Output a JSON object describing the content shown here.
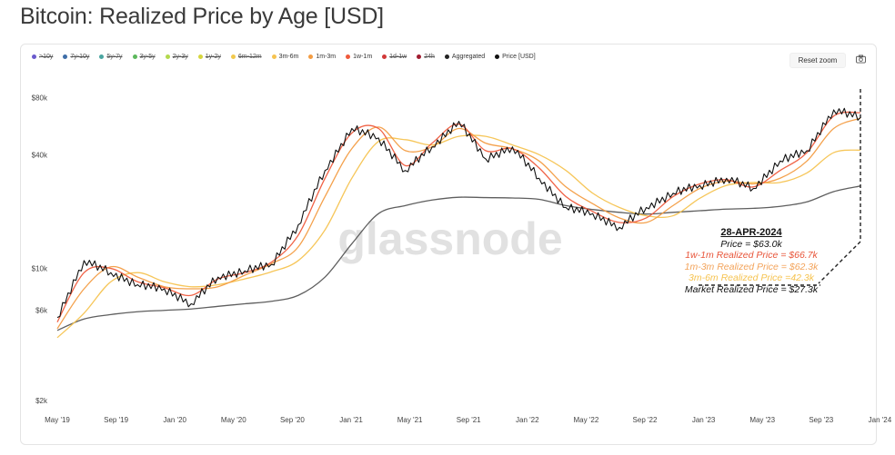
{
  "title": "Bitcoin: Realized Price by Age [USD]",
  "toolbar": {
    "reset_label": "Reset zoom",
    "camera_icon": "camera-icon"
  },
  "legend": [
    {
      "label": ">10y",
      "color": "#6a5acd",
      "active": false
    },
    {
      "label": "7y-10y",
      "color": "#3f6ea8",
      "active": false
    },
    {
      "label": "5y-7y",
      "color": "#4aa5a0",
      "active": false
    },
    {
      "label": "3y-5y",
      "color": "#5cb85c",
      "active": false
    },
    {
      "label": "2y-3y",
      "color": "#b3d94d",
      "active": false
    },
    {
      "label": "1y-2y",
      "color": "#d6d63d",
      "active": false
    },
    {
      "label": "6m-12m",
      "color": "#f2c94c",
      "active": false
    },
    {
      "label": "3m-6m",
      "color": "#f6c350",
      "active": true
    },
    {
      "label": "1m-3m",
      "color": "#f39c42",
      "active": true
    },
    {
      "label": "1w-1m",
      "color": "#ef5a3c",
      "active": true
    },
    {
      "label": "1d-1w",
      "color": "#d13838",
      "active": false
    },
    {
      "label": "24h",
      "color": "#a01c30",
      "active": false
    },
    {
      "label": "Aggregated",
      "color": "#222222",
      "active": true
    },
    {
      "label": "Price [USD]",
      "color": "#111111",
      "active": true
    }
  ],
  "watermark": "glassnode",
  "annotation": {
    "date": "28-APR-2024",
    "price": "Price = $63.0k",
    "w1m": "1w-1m Realized Price = $66.7k",
    "m13": "1m-3m Realized Price = $62.3k",
    "m36": "3m-6m Realized Price =42.3k",
    "market": "Market Realized Price = $27.3k",
    "colors": {
      "price": "#111111",
      "w1m": "#e8553a",
      "m13": "#f3a35a",
      "m36": "#f6c350",
      "market": "#111111"
    }
  },
  "chart_data": {
    "type": "line",
    "title": "Bitcoin: Realized Price by Age [USD]",
    "y_scale": "log",
    "ylim": [
      2000,
      90000
    ],
    "y_ticks": [
      {
        "value": 2000,
        "label": "$2k"
      },
      {
        "value": 6000,
        "label": "$6k"
      },
      {
        "value": 10000,
        "label": "$10k"
      },
      {
        "value": 40000,
        "label": "$40k"
      },
      {
        "value": 80000,
        "label": "$80k"
      }
    ],
    "x_ticks": [
      "May '19",
      "Sep '19",
      "Jan '20",
      "May '20",
      "Sep '20",
      "Jan '21",
      "May '21",
      "Sep '21",
      "Jan '22",
      "May '22",
      "Sep '22",
      "Jan '23",
      "May '23",
      "Sep '23",
      "Jan '24"
    ],
    "x": [
      "May '19",
      "Jul '19",
      "Sep '19",
      "Nov '19",
      "Jan '20",
      "Mar '20",
      "May '20",
      "Jul '20",
      "Sep '20",
      "Nov '20",
      "Jan '21",
      "Mar '21",
      "May '21",
      "Jul '21",
      "Sep '21",
      "Nov '21",
      "Jan '22",
      "Mar '22",
      "May '22",
      "Jul '22",
      "Sep '22",
      "Nov '22",
      "Jan '23",
      "Mar '23",
      "May '23",
      "Jul '23",
      "Sep '23",
      "Nov '23",
      "Jan '24",
      "Mar '24",
      "Apr '24"
    ],
    "series": [
      {
        "name": "Price [USD]",
        "color": "#111111",
        "values": [
          5500,
          11000,
          9500,
          8200,
          7800,
          6500,
          9000,
          9700,
          10500,
          17000,
          33000,
          55000,
          49000,
          33000,
          44000,
          60000,
          38000,
          44000,
          30000,
          21000,
          19500,
          16500,
          21000,
          25000,
          27500,
          30000,
          26500,
          37000,
          42000,
          69000,
          63000
        ]
      },
      {
        "name": "1w-1m",
        "color": "#ef5a3c",
        "values": [
          5200,
          9500,
          10000,
          8500,
          7900,
          7200,
          8800,
          9500,
          10800,
          15000,
          30000,
          52000,
          55000,
          35000,
          46000,
          58000,
          42000,
          43000,
          34000,
          24000,
          20000,
          17500,
          18500,
          24000,
          28000,
          29500,
          27000,
          33000,
          41000,
          64000,
          66700
        ]
      },
      {
        "name": "1m-3m",
        "color": "#f39c42",
        "values": [
          4800,
          7800,
          10200,
          9000,
          8000,
          7800,
          8000,
          9200,
          10600,
          13000,
          24000,
          43000,
          56000,
          42000,
          44000,
          55000,
          46000,
          43000,
          37000,
          27000,
          22000,
          18500,
          17500,
          21500,
          26500,
          29000,
          28000,
          30000,
          37000,
          55000,
          62300
        ]
      },
      {
        "name": "3m-6m",
        "color": "#f6c350",
        "values": [
          4300,
          5800,
          8500,
          9500,
          8500,
          8000,
          8200,
          8800,
          9600,
          11000,
          16000,
          30000,
          47000,
          48000,
          45000,
          50000,
          50000,
          45000,
          40000,
          33000,
          25000,
          21000,
          19000,
          19000,
          23500,
          27500,
          28500,
          28500,
          32000,
          41000,
          42300
        ]
      },
      {
        "name": "Aggregated",
        "color": "#555555",
        "values": [
          4700,
          5400,
          5700,
          5900,
          6000,
          6100,
          6300,
          6500,
          6700,
          7200,
          9000,
          13500,
          19500,
          21500,
          23000,
          23800,
          23700,
          23600,
          23200,
          21500,
          20500,
          19800,
          19400,
          19800,
          20200,
          20600,
          20800,
          21300,
          22500,
          25500,
          27300
        ]
      }
    ]
  }
}
